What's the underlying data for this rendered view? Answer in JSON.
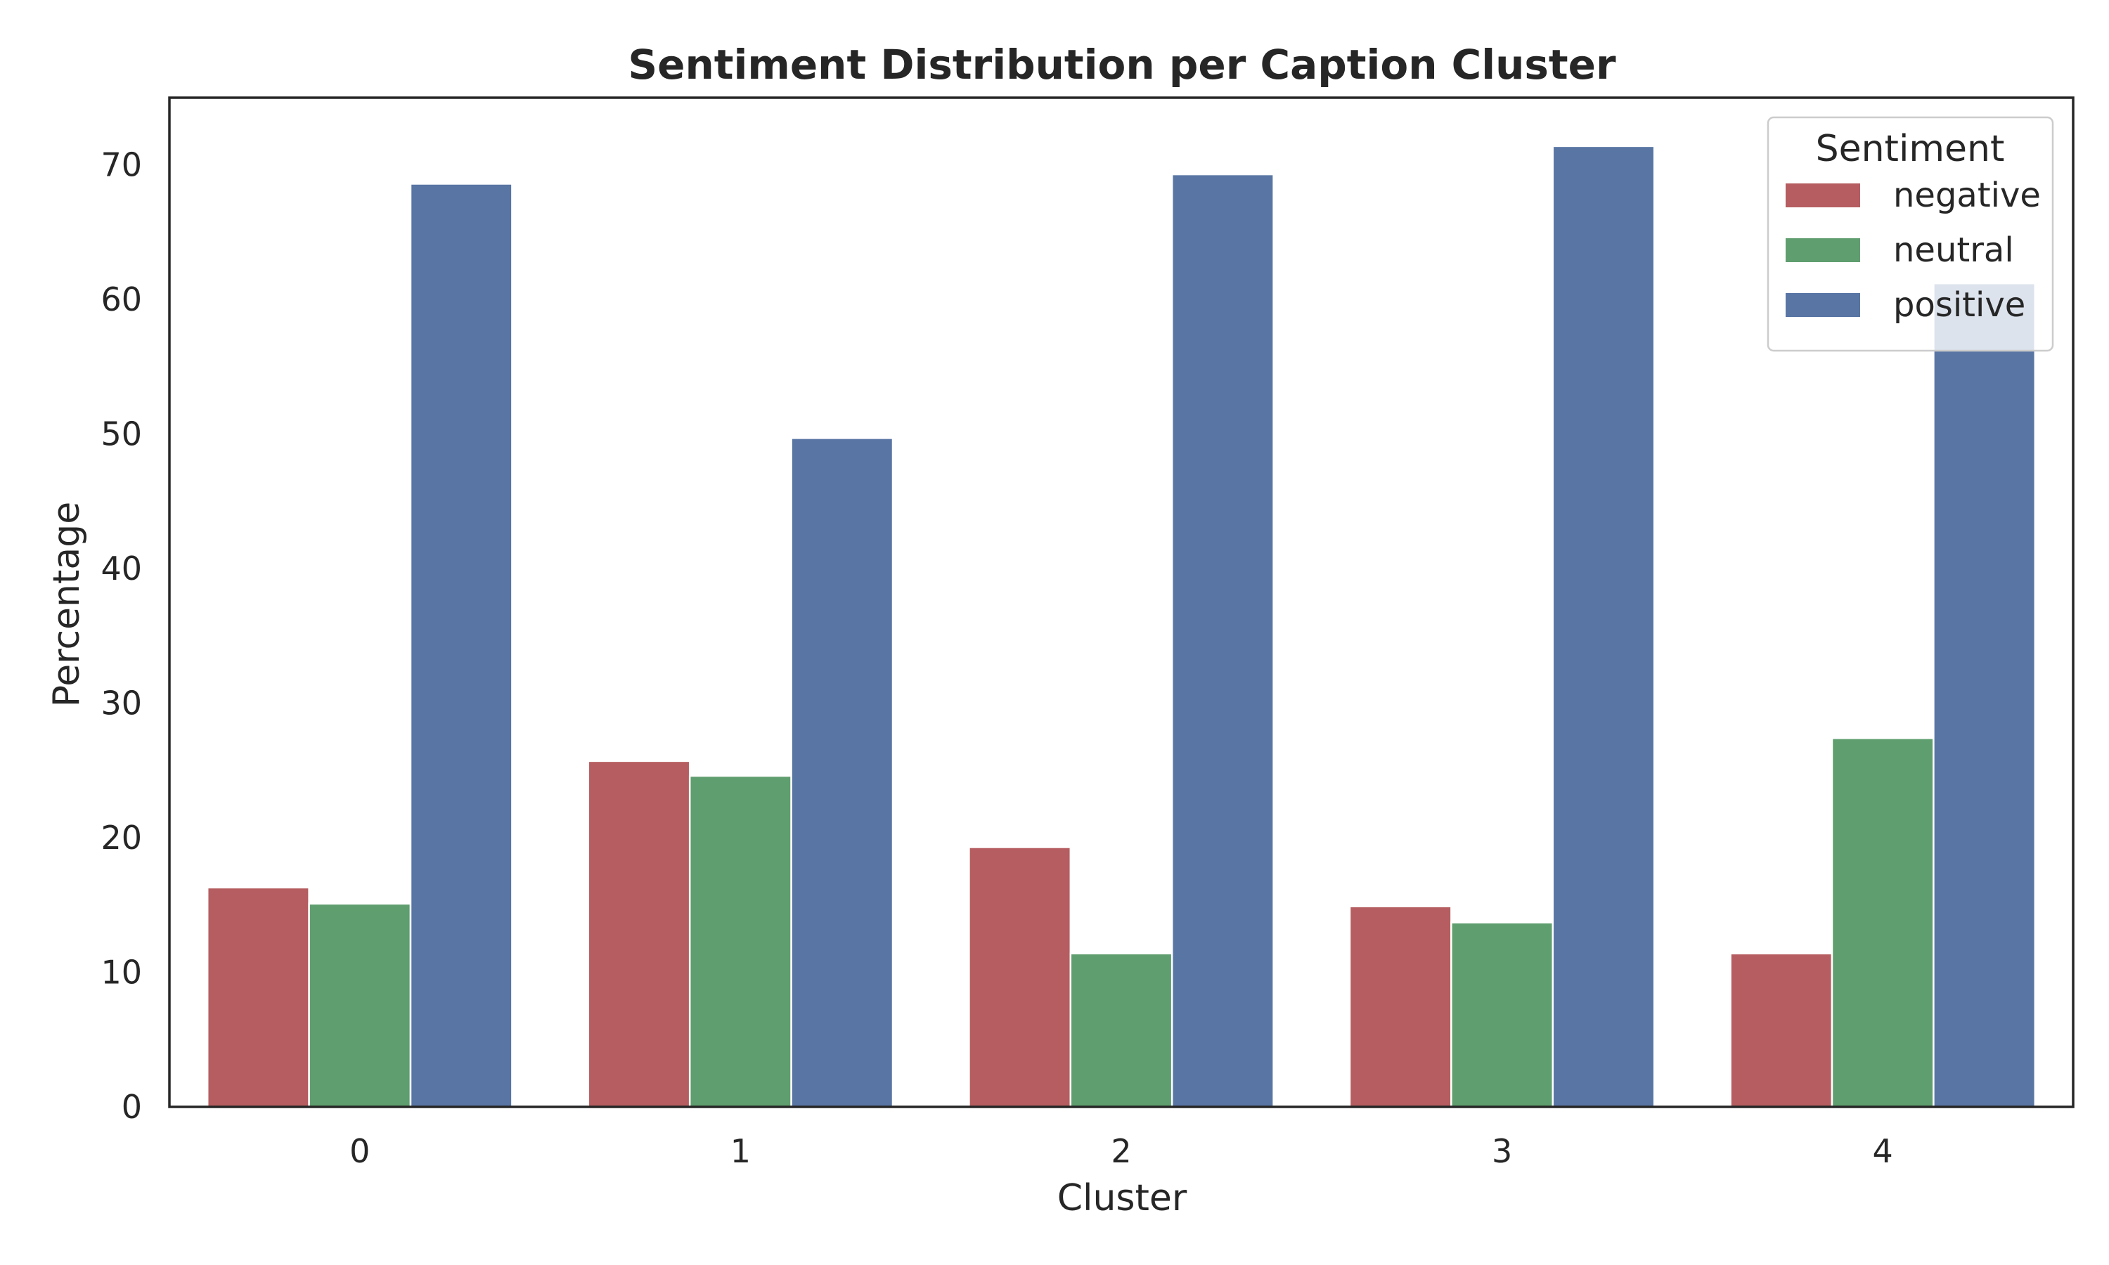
{
  "chart_data": {
    "type": "bar",
    "title": "Sentiment Distribution per Caption Cluster",
    "xlabel": "Cluster",
    "ylabel": "Percentage",
    "categories": [
      "0",
      "1",
      "2",
      "3",
      "4"
    ],
    "ylim": [
      0,
      75
    ],
    "yticks": [
      "0",
      "10",
      "20",
      "30",
      "40",
      "50",
      "60",
      "70"
    ],
    "grid": false,
    "legend": {
      "title": "Sentiment",
      "placement": "upper-right"
    },
    "series": [
      {
        "name": "negative",
        "color": "#b55d60",
        "values": [
          16.3,
          25.7,
          19.3,
          14.9,
          11.4
        ]
      },
      {
        "name": "neutral",
        "color": "#5f9e6e",
        "values": [
          15.1,
          24.6,
          11.4,
          13.7,
          27.4
        ]
      },
      {
        "name": "positive",
        "color": "#5875a4",
        "values": [
          68.6,
          49.7,
          69.3,
          71.4,
          61.2
        ]
      }
    ]
  }
}
